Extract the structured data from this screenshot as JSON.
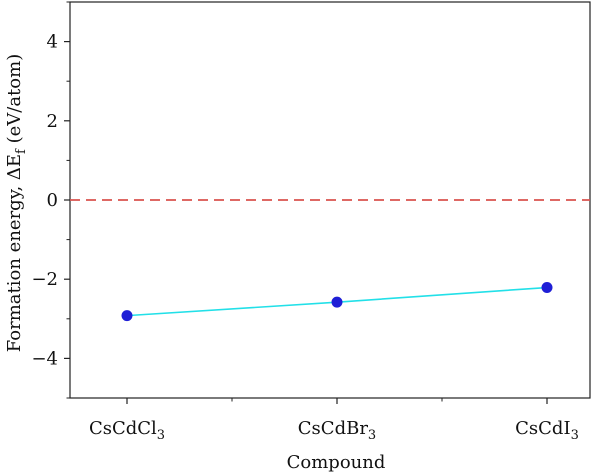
{
  "chart_data": {
    "type": "line",
    "categories": [
      "CsCdCl",
      "CsCdBr",
      "CsCdI"
    ],
    "category_subscripts": [
      "3",
      "3",
      "3"
    ],
    "series": [
      {
        "values": [
          -2.92,
          -2.58,
          -2.21
        ]
      }
    ],
    "xlabel": "Compound",
    "ylabel_main": "Formation energy, ΔE",
    "ylabel_sub": "f",
    "ylabel_unit": " (eV/atom)",
    "ylim": [
      -5,
      5
    ],
    "yticks": [
      -4,
      -2,
      0,
      2,
      4
    ],
    "y_minor_ticks": [
      -5,
      -3,
      -1,
      1,
      3,
      5
    ],
    "reference_line": {
      "y": 0,
      "style": "dashed",
      "color": "#d9534f"
    },
    "line_color": "#22e0e8",
    "marker_color": "#1f1fd6",
    "grid": false
  }
}
